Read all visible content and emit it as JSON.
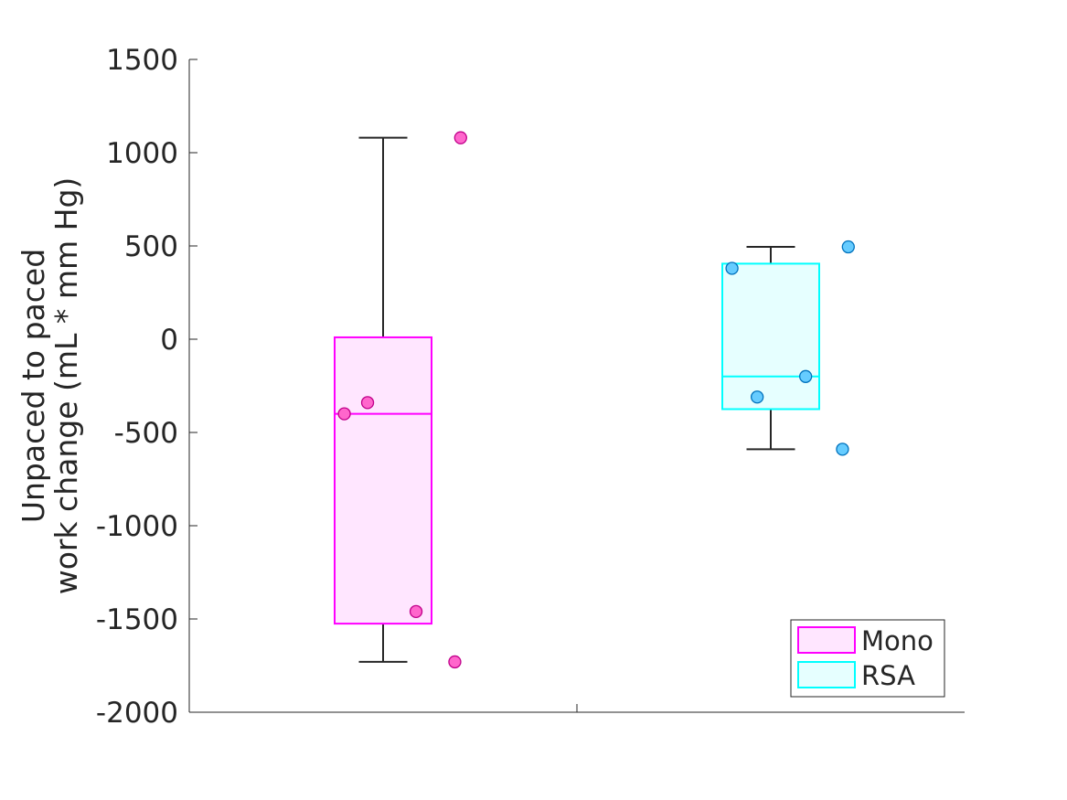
{
  "chart_data": {
    "type": "box",
    "title": "",
    "xlabel": "",
    "ylabel_lines": [
      "Unpaced to paced",
      "work change (mL * mm Hg)"
    ],
    "ylim": [
      -2000,
      1500
    ],
    "yticks": [
      1500,
      1000,
      500,
      0,
      -500,
      -1000,
      -1500,
      -2000
    ],
    "ytick_labels": [
      "1500",
      "1000",
      "500",
      "0",
      "-500",
      "-1000",
      "-1500",
      "-2000"
    ],
    "grid": false,
    "legend_position": "bottom-right",
    "series": [
      {
        "name": "Mono",
        "edge_color": "#ff00ff",
        "fill_color": "#ffe6ff",
        "point_color": "#ff66cc",
        "whisker_low": -1730,
        "q1": -1525,
        "median": -400,
        "q3": 10,
        "whisker_high": 1080,
        "points": [
          {
            "y": 1080,
            "jitter": 0.2
          },
          {
            "y": -340,
            "jitter": -0.04
          },
          {
            "y": -400,
            "jitter": -0.1
          },
          {
            "y": -1460,
            "jitter": 0.085
          },
          {
            "y": -1730,
            "jitter": 0.185
          }
        ]
      },
      {
        "name": "RSA",
        "edge_color": "#00ffff",
        "fill_color": "#e6ffff",
        "point_color": "#66ccff",
        "whisker_low": -590,
        "q1": -375,
        "median": -200,
        "q3": 405,
        "whisker_high": 495,
        "points": [
          {
            "y": 495,
            "jitter": 0.2
          },
          {
            "y": 380,
            "jitter": -0.1
          },
          {
            "y": -200,
            "jitter": 0.09
          },
          {
            "y": -310,
            "jitter": -0.035
          },
          {
            "y": -590,
            "jitter": 0.185
          }
        ]
      }
    ]
  }
}
